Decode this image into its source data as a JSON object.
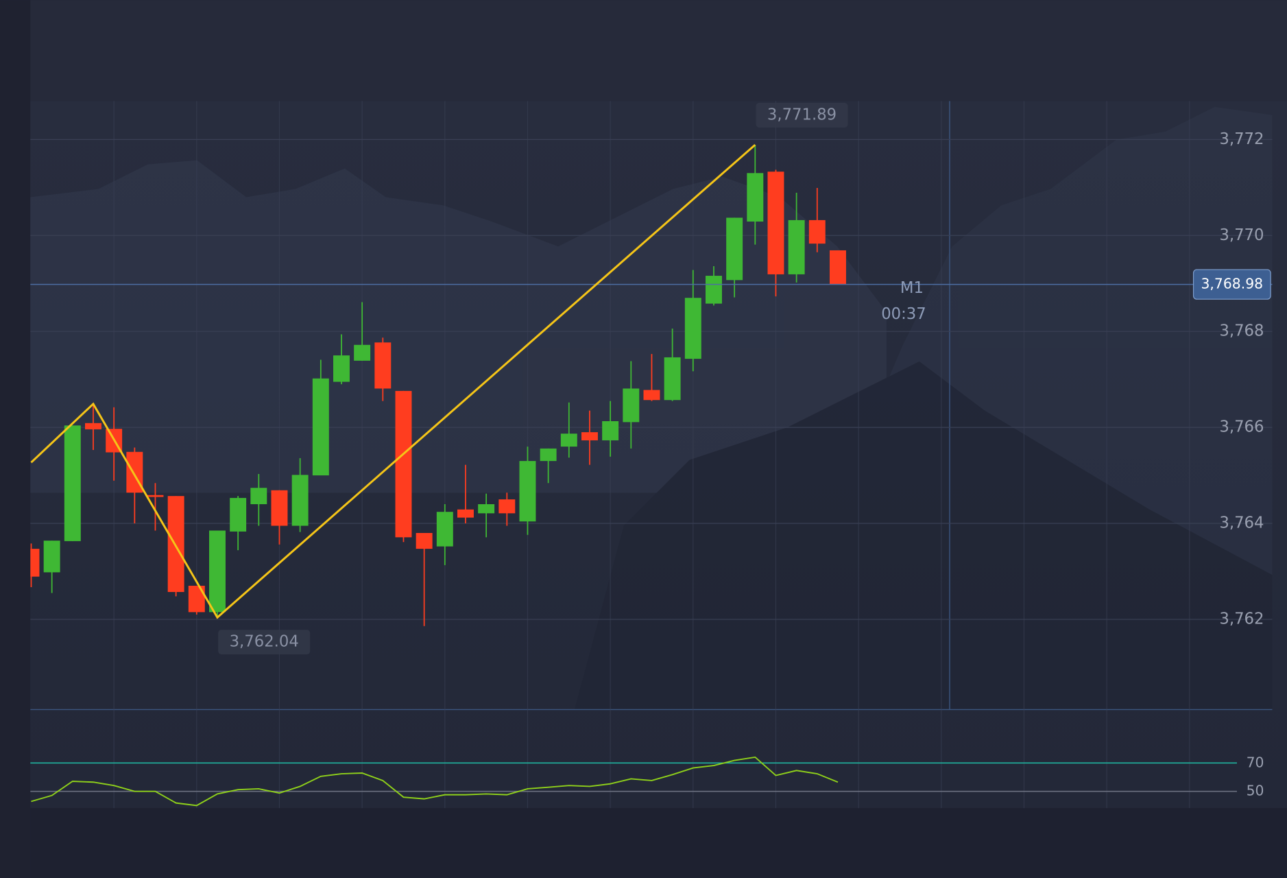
{
  "chart_data": [
    {
      "type": "candlestick",
      "open": [
        3763.47,
        3762.98,
        3763.63,
        3766.09,
        3765.97,
        3765.49,
        3764.59,
        3764.57,
        3762.7,
        3762.15,
        3763.83,
        3764.4,
        3764.69,
        3763.95,
        3765.0,
        3766.95,
        3767.39,
        3767.77,
        3766.76,
        3763.8,
        3763.52,
        3764.29,
        3764.21,
        3764.5,
        3764.04,
        3765.3,
        3765.6,
        3765.9,
        3765.73,
        3766.11,
        3766.78,
        3766.57,
        3767.43,
        3768.58,
        3769.07,
        3770.29,
        3771.33,
        3769.19,
        3770.32,
        3769.69
      ],
      "high": [
        3763.58,
        3763.64,
        3766.04,
        3766.49,
        3766.42,
        3765.58,
        3764.84,
        3764.57,
        3762.7,
        3763.85,
        3764.57,
        3765.03,
        3764.69,
        3765.36,
        3767.41,
        3767.94,
        3768.61,
        3767.87,
        3766.76,
        3763.8,
        3764.4,
        3765.22,
        3764.62,
        3764.64,
        3765.6,
        3765.56,
        3766.52,
        3766.35,
        3766.55,
        3767.38,
        3767.53,
        3768.06,
        3769.28,
        3769.36,
        3770.37,
        3771.89,
        3771.37,
        3770.89,
        3770.99,
        3769.69
      ],
      "low": [
        3762.67,
        3762.55,
        3763.63,
        3765.53,
        3764.89,
        3764.0,
        3763.85,
        3762.48,
        3762.1,
        3762.04,
        3763.44,
        3763.95,
        3763.56,
        3763.82,
        3765.0,
        3766.9,
        3767.39,
        3766.55,
        3763.61,
        3761.86,
        3763.13,
        3764.0,
        3763.71,
        3763.95,
        3763.76,
        3764.84,
        3765.37,
        3765.22,
        3765.39,
        3765.56,
        3766.55,
        3766.55,
        3767.17,
        3768.54,
        3768.71,
        3769.81,
        3768.73,
        3769.02,
        3769.65,
        3768.98
      ],
      "close": [
        3762.89,
        3763.64,
        3766.04,
        3765.96,
        3765.48,
        3764.64,
        3764.55,
        3762.57,
        3762.15,
        3763.85,
        3764.53,
        3764.74,
        3763.95,
        3765.01,
        3767.02,
        3767.5,
        3767.72,
        3766.81,
        3763.71,
        3763.47,
        3764.24,
        3764.12,
        3764.4,
        3764.21,
        3765.3,
        3765.56,
        3765.87,
        3765.73,
        3766.13,
        3766.81,
        3766.57,
        3767.46,
        3768.7,
        3769.16,
        3770.37,
        3771.3,
        3769.19,
        3770.32,
        3769.83,
        3768.98
      ],
      "up_color": "#3fb834",
      "down_color": "#ff3d1f",
      "ylim": [
        3760.12,
        3772.8
      ],
      "yticks": [
        {
          "value": 3762,
          "label": "3,762"
        },
        {
          "value": 3764,
          "label": "3,764"
        },
        {
          "value": 3766,
          "label": "3,766"
        },
        {
          "value": 3768,
          "label": "3,768"
        },
        {
          "value": 3770,
          "label": "3,770"
        },
        {
          "value": 3772,
          "label": "3,772"
        }
      ],
      "grid": true,
      "current_price": {
        "value": 3768.98,
        "label": "3,768.98"
      },
      "timeframe": "M1",
      "countdown": "00:37",
      "zigzag": {
        "x": [
          0,
          3,
          9,
          35
        ],
        "values": [
          3765.27,
          3766.49,
          3762.04,
          3771.89
        ],
        "value_labels": [
          null,
          null,
          "3,762.04",
          "3,771.89"
        ],
        "color": "#f5c518"
      }
    },
    {
      "type": "line",
      "values": [
        42.9,
        47.1,
        57.1,
        56.5,
        54.1,
        50,
        50,
        41.8,
        40,
        48.2,
        51.2,
        51.8,
        48.8,
        53.5,
        60.6,
        62.4,
        62.9,
        57.6,
        45.9,
        44.7,
        47.6,
        47.6,
        48.2,
        47.6,
        51.8,
        52.9,
        54.1,
        53.5,
        55.3,
        58.8,
        57.6,
        61.8,
        66.5,
        68.2,
        71.8,
        74.1,
        61.2,
        64.7,
        62.4,
        56.5
      ],
      "color": "#8fd11a",
      "ylim": [
        38.2,
        106.5
      ],
      "yticks": [
        50,
        70
      ],
      "tick_colors": [
        "#6b7080",
        "#1fb5a0"
      ]
    }
  ]
}
